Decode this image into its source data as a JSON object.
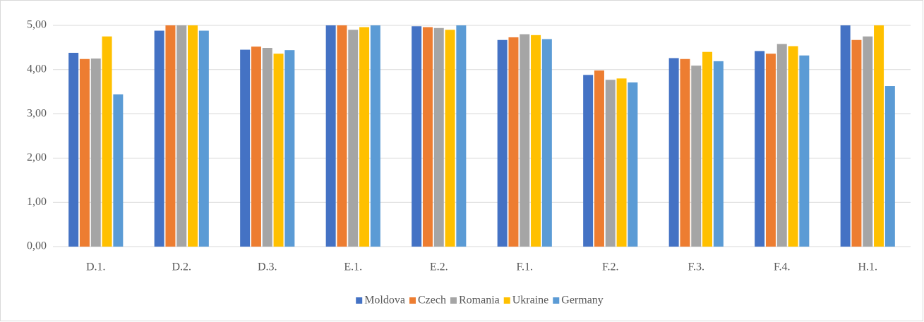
{
  "chart_data": {
    "type": "bar",
    "categories": [
      "D.1.",
      "D.2.",
      "D.3.",
      "E.1.",
      "E.2.",
      "F.1.",
      "F.2.",
      "F.3.",
      "F.4.",
      "H.1."
    ],
    "series": [
      {
        "name": "Moldova",
        "color": "#4472c4",
        "values": [
          4.38,
          4.88,
          4.45,
          5,
          4.98,
          4.67,
          3.88,
          4.26,
          4.42,
          5
        ]
      },
      {
        "name": "Czech",
        "color": "#ed7d31",
        "values": [
          4.24,
          5,
          4.52,
          5,
          4.96,
          4.73,
          3.98,
          4.24,
          4.36,
          4.67
        ]
      },
      {
        "name": "Romania",
        "color": "#a5a5a5",
        "values": [
          4.25,
          5,
          4.49,
          4.9,
          4.94,
          4.8,
          3.77,
          4.09,
          4.58,
          4.75
        ]
      },
      {
        "name": "Ukraine",
        "color": "#ffc000",
        "values": [
          4.75,
          5,
          4.36,
          4.96,
          4.9,
          4.78,
          3.8,
          4.4,
          4.53,
          5
        ]
      },
      {
        "name": "Germany",
        "color": "#5b9bd5",
        "values": [
          3.44,
          4.88,
          4.44,
          5,
          5,
          4.69,
          3.71,
          4.19,
          4.32,
          3.63
        ]
      }
    ],
    "ylim": [
      0,
      5
    ],
    "yticks": [
      {
        "value": 0,
        "label": "0,00"
      },
      {
        "value": 1,
        "label": "1,00"
      },
      {
        "value": 2,
        "label": "2,00"
      },
      {
        "value": 3,
        "label": "3,00"
      },
      {
        "value": 4,
        "label": "4,00"
      },
      {
        "value": 5,
        "label": "5,00"
      }
    ],
    "grid": true,
    "legend": "bottom"
  }
}
